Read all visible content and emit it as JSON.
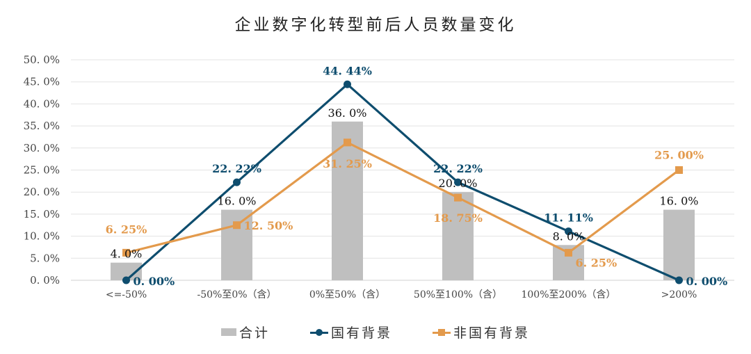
{
  "chart_data": {
    "type": "bar+line",
    "title": "企业数字化转型前后人员数量变化",
    "xlabel": "",
    "ylabel": "",
    "ylim": [
      0,
      50
    ],
    "yticks": [
      "0.0%",
      "5.0%",
      "10.0%",
      "15.0%",
      "20.0%",
      "25.0%",
      "30.0%",
      "35.0%",
      "40.0%",
      "45.0%",
      "50.0%"
    ],
    "grid": true,
    "legend_position": "bottom",
    "categories": [
      "<=-50%",
      "-50%至0%（含）",
      "0%至50%（含）",
      "50%至100%（含）",
      "100%至200%（含）",
      ">200%"
    ],
    "series": [
      {
        "name": "合计",
        "type": "bar",
        "color": "#bfbfbf",
        "values": [
          4.0,
          16.0,
          36.0,
          20.0,
          8.0,
          16.0
        ],
        "labels": [
          "4.0%",
          "16.0%",
          "36.0%",
          "20.0%",
          "8.0%",
          "16.0%"
        ]
      },
      {
        "name": "国有背景",
        "type": "line",
        "marker": "circle",
        "color": "#0e4d6e",
        "values": [
          0.0,
          22.22,
          44.44,
          22.22,
          11.11,
          0.0
        ],
        "labels": [
          "0.00%",
          "22.22%",
          "44.44%",
          "22.22%",
          "11.11%",
          "0.00%"
        ]
      },
      {
        "name": "非国有背景",
        "type": "line",
        "marker": "square",
        "color": "#e39a4c",
        "values": [
          6.25,
          12.5,
          31.25,
          18.75,
          6.25,
          25.0
        ],
        "labels": [
          "6.25%",
          "12.50%",
          "31.25%",
          "18.75%",
          "6.25%",
          "25.00%"
        ]
      }
    ]
  },
  "legend": {
    "total": "合计",
    "state_owned": "国有背景",
    "non_state_owned": "非国有背景"
  }
}
